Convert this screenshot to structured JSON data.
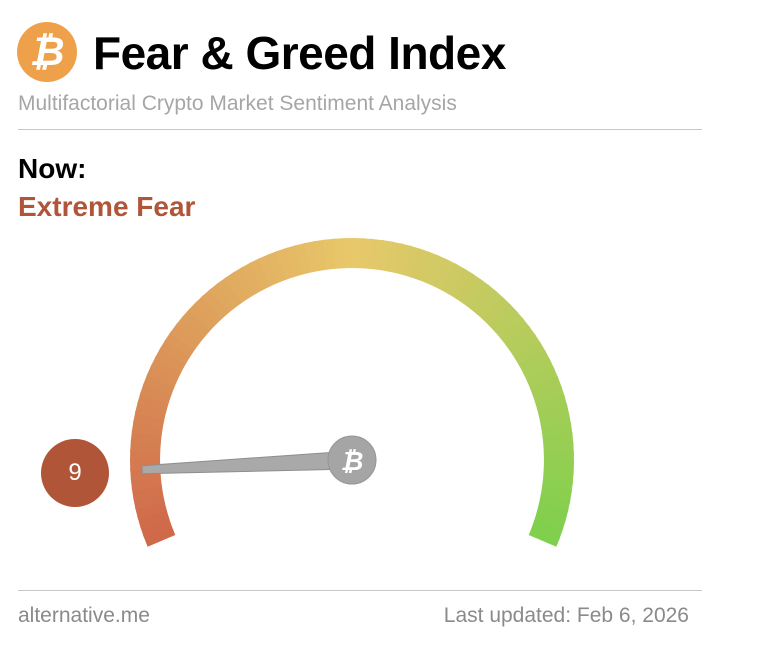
{
  "header": {
    "logo_icon": "bitcoin-icon",
    "title": "Fear & Greed Index",
    "subtitle": "Multifactorial Crypto Market Sentiment Analysis"
  },
  "now": {
    "label": "Now:",
    "classification": "Extreme Fear",
    "value": "9",
    "value_numeric": 9,
    "range": [
      0,
      100
    ],
    "color": "#b05538"
  },
  "gauge": {
    "colors": [
      "#d0684a",
      "#e8c86a",
      "#7fd04c"
    ],
    "needle_icon": "bitcoin-icon"
  },
  "footer": {
    "site": "alternative.me",
    "updated": "Last updated: Feb 6, 2026"
  }
}
